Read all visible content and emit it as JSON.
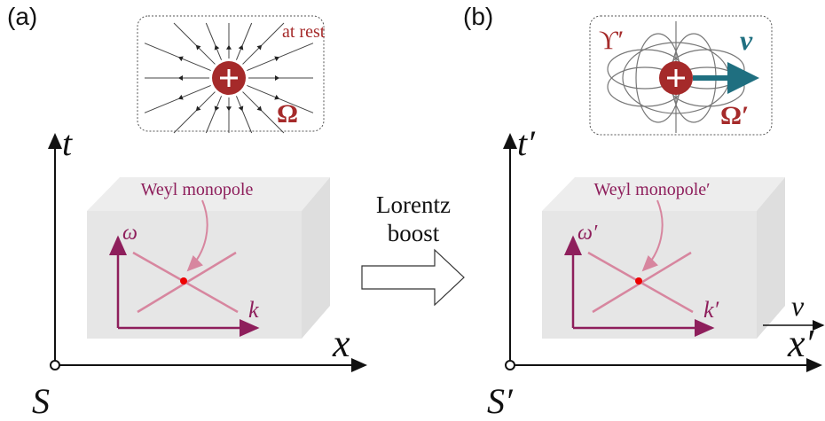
{
  "panel_a": {
    "label": "(a)",
    "inset": {
      "caption": "at rest",
      "symbol": "Ω"
    },
    "axes": {
      "t": "t",
      "x": "x",
      "origin": "S"
    },
    "box": {
      "annotation": "Weyl monopole",
      "omega": "ω",
      "k": "k"
    }
  },
  "boost": {
    "line1": "Lorentz",
    "line2": "boost"
  },
  "panel_b": {
    "label": "(b)",
    "inset": {
      "symbol_upsilon": "ϒ′",
      "velocity": "v⃗",
      "symbol": "Ω′"
    },
    "axes": {
      "t": "t′",
      "x": "x′",
      "origin": "S′"
    },
    "box": {
      "annotation": "Weyl monopole′",
      "omega": "ω′",
      "k": "k′"
    },
    "velocity": "v⃗"
  }
}
